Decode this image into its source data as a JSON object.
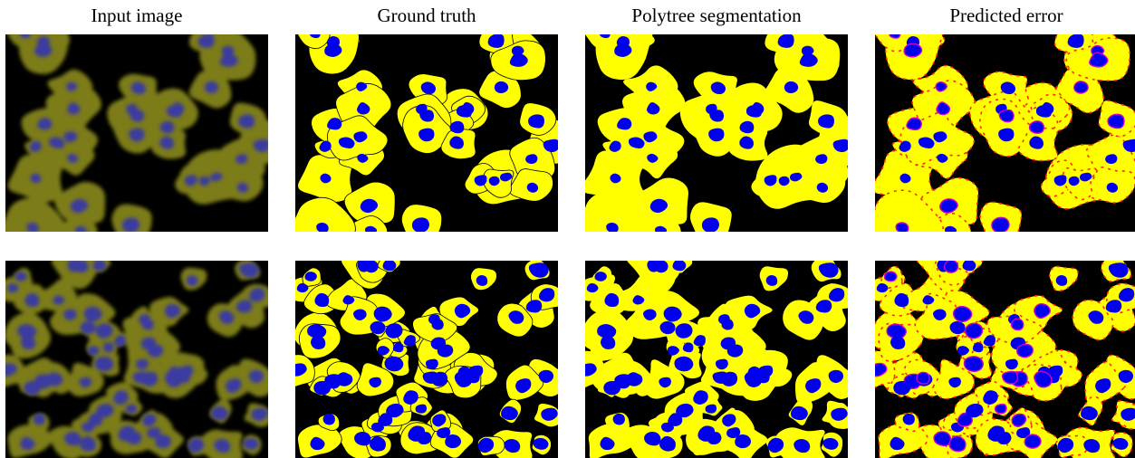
{
  "columns": [
    {
      "title": "Input image"
    },
    {
      "title": "Ground truth"
    },
    {
      "title": "Polytree segmentation"
    },
    {
      "title": "Predicted error"
    }
  ],
  "colors": {
    "background": "#000000",
    "cell": "#ffff00",
    "nucleus": "#0000ee",
    "fluorescence_cell": "#8a8a1a",
    "fluorescence_nucleus": "#3a3aa0",
    "error": "#ff2a00",
    "error_nucleus": "#cc00cc"
  },
  "rows": [
    {
      "panels": [
        "input-image",
        "ground-truth",
        "polytree-segmentation",
        "predicted-error"
      ]
    },
    {
      "panels": [
        "input-image",
        "ground-truth",
        "polytree-segmentation",
        "predicted-error"
      ]
    }
  ]
}
